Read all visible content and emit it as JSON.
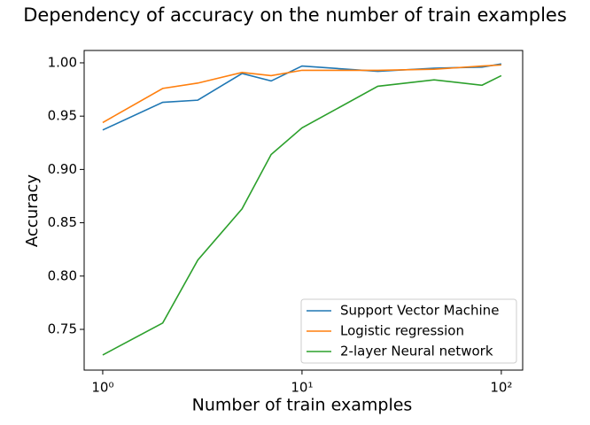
{
  "chart_data": {
    "type": "line",
    "title": "Dependency of accuracy on the number of train examples",
    "xlabel": "Number of train examples",
    "ylabel": "Accuracy",
    "x": [
      1,
      2,
      3,
      5,
      7,
      10,
      24,
      46,
      80,
      100
    ],
    "xscale": "log",
    "series": [
      {
        "name": "Support Vector Machine",
        "color": "#1f77b4",
        "values": [
          0.937,
          0.963,
          0.965,
          0.99,
          0.983,
          0.997,
          0.992,
          0.995,
          0.996,
          0.999
        ]
      },
      {
        "name": "Logistic regression",
        "color": "#ff7f0e",
        "values": [
          0.944,
          0.976,
          0.981,
          0.991,
          0.988,
          0.993,
          0.993,
          0.994,
          0.997,
          0.998
        ]
      },
      {
        "name": "2-layer Neural network",
        "color": "#2ca02c",
        "values": [
          0.726,
          0.756,
          0.815,
          0.863,
          0.914,
          0.939,
          0.978,
          0.984,
          0.979,
          0.988
        ]
      }
    ],
    "xlim": [
      0.807,
      128
    ],
    "ylim": [
      0.7118,
      1.0116
    ],
    "xticks": [
      {
        "value": 1,
        "label": "10⁰"
      },
      {
        "value": 10,
        "label": "10¹"
      },
      {
        "value": 100,
        "label": "10²"
      }
    ],
    "yticks": [
      {
        "value": 0.75,
        "label": "0.75"
      },
      {
        "value": 0.8,
        "label": "0.80"
      },
      {
        "value": 0.85,
        "label": "0.85"
      },
      {
        "value": 0.9,
        "label": "0.90"
      },
      {
        "value": 0.95,
        "label": "0.95"
      },
      {
        "value": 1,
        "label": "1.00"
      }
    ],
    "legend": "lower right"
  }
}
